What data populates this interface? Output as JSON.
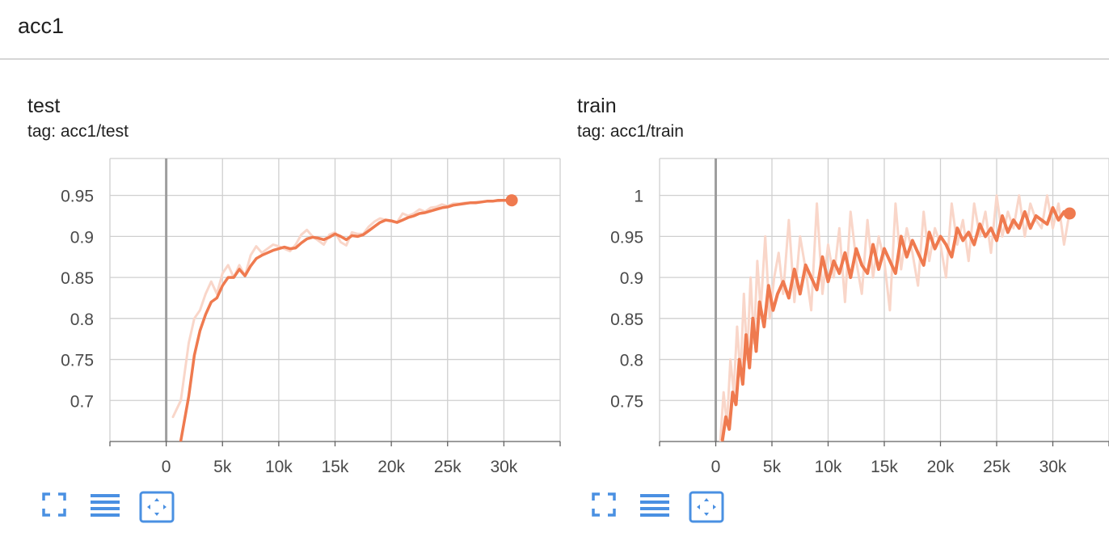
{
  "group": {
    "title": "acc1"
  },
  "colors": {
    "line": "#ef7a4f",
    "raw": "#f9d6c9",
    "accent": "#4a90e2",
    "grid": "#cfcfcf"
  },
  "icons": {
    "fit": "fullscreen-icon",
    "logscale": "list-lines-icon",
    "reset": "fit-domain-icon"
  },
  "cards": [
    {
      "title": "test",
      "tag": "tag: acc1/test",
      "icons": [
        "fullscreen-icon",
        "list-lines-icon",
        "fit-domain-icon"
      ]
    },
    {
      "title": "train",
      "tag": "tag: acc1/train",
      "icons": [
        "fullscreen-icon",
        "list-lines-icon",
        "fit-domain-icon"
      ]
    }
  ],
  "chart_data": [
    {
      "type": "line",
      "title": "test",
      "tag": "tag: acc1/test",
      "xlim": [
        -5000,
        35000
      ],
      "ylim": [
        0.65,
        0.995
      ],
      "xticks": [
        0,
        5000,
        10000,
        15000,
        20000,
        25000,
        30000
      ],
      "xtick_labels": [
        "0",
        "5k",
        "10k",
        "15k",
        "20k",
        "25k",
        "30k"
      ],
      "yticks": [
        0.7,
        0.75,
        0.8,
        0.85,
        0.9,
        0.95
      ],
      "ytick_labels": [
        "0.7",
        "0.75",
        "0.8",
        "0.85",
        "0.9",
        "0.95"
      ],
      "grid": true,
      "series": [
        {
          "role": "raw",
          "x": [
            600,
            1300,
            2000,
            2500,
            3000,
            3500,
            4000,
            4500,
            5000,
            5500,
            6000,
            6500,
            7000,
            7500,
            8000,
            8500,
            9000,
            9500,
            10000,
            10500,
            11000,
            11500,
            12000,
            12500,
            13000,
            13500,
            14000,
            14500,
            15000,
            15500,
            16000,
            16500,
            17000,
            17500,
            18000,
            18500,
            19000,
            19500,
            20000,
            20500,
            21000,
            21500,
            22000,
            22500,
            23000,
            23500,
            24000,
            24500,
            25000,
            25500,
            26000,
            26500,
            27000,
            27500,
            28000,
            28500,
            29000,
            29500,
            30000,
            30700
          ],
          "y": [
            0.68,
            0.7,
            0.77,
            0.8,
            0.81,
            0.83,
            0.845,
            0.83,
            0.855,
            0.865,
            0.85,
            0.865,
            0.852,
            0.877,
            0.888,
            0.88,
            0.885,
            0.89,
            0.888,
            0.885,
            0.882,
            0.89,
            0.902,
            0.908,
            0.9,
            0.895,
            0.89,
            0.902,
            0.905,
            0.893,
            0.889,
            0.905,
            0.903,
            0.903,
            0.912,
            0.918,
            0.922,
            0.92,
            0.918,
            0.917,
            0.928,
            0.925,
            0.928,
            0.933,
            0.93,
            0.935,
            0.936,
            0.939,
            0.937,
            0.94,
            0.94,
            0.941,
            0.941,
            0.942,
            0.942,
            0.943,
            0.943,
            0.943,
            0.944,
            0.944
          ]
        },
        {
          "role": "smoothed",
          "x": [
            1300,
            2000,
            2500,
            3000,
            3500,
            4000,
            4500,
            5000,
            5500,
            6000,
            6500,
            7000,
            7500,
            8000,
            8500,
            9000,
            9500,
            10000,
            10500,
            11000,
            11500,
            12000,
            12500,
            13000,
            13500,
            14000,
            14500,
            15000,
            15500,
            16000,
            16500,
            17000,
            17500,
            18000,
            18500,
            19000,
            19500,
            20000,
            20500,
            21000,
            21500,
            22000,
            22500,
            23000,
            23500,
            24000,
            24500,
            25000,
            25500,
            26000,
            26500,
            27000,
            27500,
            28000,
            28500,
            29000,
            29500,
            30000,
            30700
          ],
          "y": [
            0.651,
            0.705,
            0.755,
            0.785,
            0.805,
            0.82,
            0.825,
            0.84,
            0.85,
            0.85,
            0.86,
            0.852,
            0.864,
            0.873,
            0.877,
            0.88,
            0.883,
            0.885,
            0.887,
            0.885,
            0.886,
            0.892,
            0.897,
            0.899,
            0.898,
            0.896,
            0.899,
            0.903,
            0.9,
            0.896,
            0.901,
            0.9,
            0.902,
            0.907,
            0.912,
            0.917,
            0.92,
            0.919,
            0.917,
            0.92,
            0.923,
            0.925,
            0.928,
            0.929,
            0.931,
            0.933,
            0.935,
            0.936,
            0.938,
            0.939,
            0.94,
            0.941,
            0.941,
            0.942,
            0.943,
            0.943,
            0.944,
            0.944,
            0.944
          ]
        }
      ],
      "last_point": {
        "x": 30700,
        "y": 0.944
      }
    },
    {
      "type": "line",
      "title": "train",
      "tag": "tag: acc1/train",
      "xlim": [
        -5000,
        35000
      ],
      "ylim": [
        0.7,
        1.045
      ],
      "xticks": [
        0,
        5000,
        10000,
        15000,
        20000,
        25000,
        30000
      ],
      "xtick_labels": [
        "0",
        "5k",
        "10k",
        "15k",
        "20k",
        "25k",
        "30k"
      ],
      "yticks": [
        0.75,
        0.8,
        0.85,
        0.9,
        0.95,
        1.0
      ],
      "ytick_labels": [
        "0.75",
        "0.8",
        "0.85",
        "0.9",
        "0.95",
        "1"
      ],
      "grid": true,
      "series": [
        {
          "role": "raw",
          "x": [
            400,
            700,
            1000,
            1300,
            1600,
            1900,
            2200,
            2500,
            2800,
            3100,
            3400,
            3700,
            4000,
            4400,
            4800,
            5200,
            5600,
            6000,
            6500,
            7000,
            7500,
            8000,
            8500,
            9000,
            9500,
            10000,
            10500,
            11000,
            11500,
            12000,
            12500,
            13000,
            13500,
            14000,
            14500,
            15000,
            15500,
            16000,
            16500,
            17000,
            17500,
            18000,
            18500,
            19000,
            19500,
            20000,
            20500,
            21000,
            21500,
            22000,
            22500,
            23000,
            23500,
            24000,
            24500,
            25000,
            25500,
            26000,
            26500,
            27000,
            27500,
            28000,
            28500,
            29000,
            29500,
            30000,
            30500,
            31000,
            31500
          ],
          "y": [
            0.7,
            0.76,
            0.72,
            0.8,
            0.76,
            0.84,
            0.78,
            0.88,
            0.8,
            0.9,
            0.82,
            0.92,
            0.86,
            0.95,
            0.85,
            0.9,
            0.93,
            0.88,
            0.97,
            0.87,
            0.95,
            0.91,
            0.86,
            0.99,
            0.88,
            0.94,
            0.9,
            0.96,
            0.87,
            0.98,
            0.92,
            0.88,
            0.97,
            0.9,
            0.95,
            0.92,
            0.86,
            0.99,
            0.91,
            0.96,
            0.93,
            0.89,
            0.98,
            0.92,
            0.96,
            0.94,
            0.9,
            0.99,
            0.94,
            0.97,
            0.92,
            0.99,
            0.95,
            0.98,
            0.93,
            1.0,
            0.95,
            0.98,
            0.96,
            1.0,
            0.95,
            0.99,
            0.97,
            0.96,
            1.0,
            0.96,
            0.99,
            0.94,
            0.98
          ]
        },
        {
          "role": "smoothed",
          "x": [
            600,
            900,
            1200,
            1500,
            1800,
            2100,
            2400,
            2700,
            3000,
            3300,
            3600,
            3900,
            4300,
            4700,
            5100,
            5500,
            6000,
            6500,
            7000,
            7500,
            8000,
            8500,
            9000,
            9500,
            10000,
            10500,
            11000,
            11500,
            12000,
            12500,
            13000,
            13500,
            14000,
            14500,
            15000,
            15500,
            16000,
            16500,
            17000,
            17500,
            18000,
            18500,
            19000,
            19500,
            20000,
            20500,
            21000,
            21500,
            22000,
            22500,
            23000,
            23500,
            24000,
            24500,
            25000,
            25500,
            26000,
            26500,
            27000,
            27500,
            28000,
            28500,
            29000,
            29500,
            30000,
            30500,
            31000,
            31500
          ],
          "y": [
            0.702,
            0.73,
            0.715,
            0.76,
            0.745,
            0.8,
            0.77,
            0.83,
            0.79,
            0.85,
            0.81,
            0.87,
            0.84,
            0.89,
            0.86,
            0.88,
            0.895,
            0.875,
            0.91,
            0.88,
            0.915,
            0.9,
            0.885,
            0.925,
            0.895,
            0.92,
            0.905,
            0.93,
            0.9,
            0.935,
            0.915,
            0.905,
            0.94,
            0.91,
            0.935,
            0.92,
            0.905,
            0.95,
            0.925,
            0.945,
            0.93,
            0.915,
            0.955,
            0.935,
            0.95,
            0.94,
            0.925,
            0.96,
            0.945,
            0.955,
            0.94,
            0.965,
            0.95,
            0.96,
            0.945,
            0.975,
            0.955,
            0.97,
            0.96,
            0.98,
            0.96,
            0.975,
            0.97,
            0.965,
            0.985,
            0.97,
            0.98,
            0.978
          ]
        }
      ],
      "last_point": {
        "x": 31500,
        "y": 0.978
      }
    }
  ]
}
